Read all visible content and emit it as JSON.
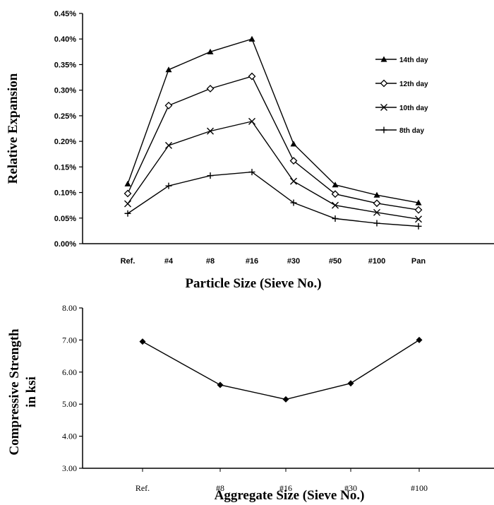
{
  "chart_data": [
    {
      "type": "line",
      "xlabel": "Particle Size (Sieve No.)",
      "ylabel": "Relative Expansion",
      "categories": [
        "Ref.",
        "#4",
        "#8",
        "#16",
        "#30",
        "#50",
        "#100",
        "Pan"
      ],
      "ylim": [
        0,
        0.45
      ],
      "yticks": [
        "0.00%",
        "0.05%",
        "0.10%",
        "0.15%",
        "0.20%",
        "0.25%",
        "0.30%",
        "0.35%",
        "0.40%",
        "0.45%"
      ],
      "legend_position": "right",
      "grid": false,
      "series": [
        {
          "name": "14th day",
          "marker": "filled-triangle",
          "values": [
            0.117,
            0.34,
            0.375,
            0.4,
            0.195,
            0.115,
            0.095,
            0.08
          ]
        },
        {
          "name": "12th day",
          "marker": "open-diamond",
          "values": [
            0.098,
            0.27,
            0.303,
            0.327,
            0.162,
            0.097,
            0.079,
            0.066
          ]
        },
        {
          "name": "10th day",
          "marker": "x",
          "values": [
            0.078,
            0.192,
            0.22,
            0.239,
            0.122,
            0.075,
            0.061,
            0.048
          ]
        },
        {
          "name": "8th day",
          "marker": "plus",
          "values": [
            0.059,
            0.113,
            0.133,
            0.14,
            0.08,
            0.049,
            0.04,
            0.034
          ]
        }
      ]
    },
    {
      "type": "line",
      "xlabel": "Aggregate Size (Sieve No.)",
      "ylabel": "Compressive Strength in ksi",
      "ylabel_lines": [
        "Compressive Strength",
        "in ksi"
      ],
      "categories": [
        "Ref.",
        "#8",
        "#16",
        "#30",
        "#100"
      ],
      "ylim": [
        3,
        8
      ],
      "yticks": [
        "3.00",
        "4.00",
        "5.00",
        "6.00",
        "7.00",
        "8.00"
      ],
      "grid": false,
      "series": [
        {
          "marker": "filled-diamond",
          "values": [
            6.95,
            5.6,
            5.15,
            5.65,
            7.0
          ]
        }
      ]
    }
  ]
}
